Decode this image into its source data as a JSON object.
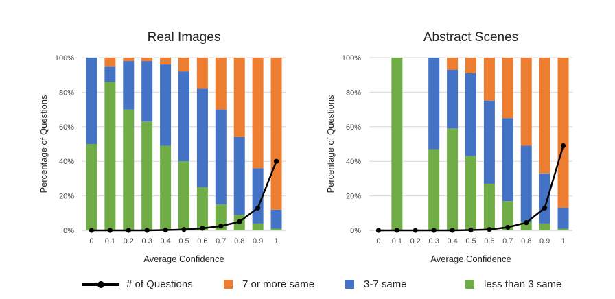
{
  "chart_data": [
    {
      "type": "bar",
      "stacked": true,
      "title": "Real Images",
      "xlabel": "Average Confidence",
      "ylabel": "Percentage of Questions",
      "categories": [
        "0",
        "0.1",
        "0.2",
        "0.3",
        "0.4",
        "0.5",
        "0.6",
        "0.7",
        "0.8",
        "0.9",
        "1"
      ],
      "ylim": [
        0,
        100
      ],
      "yticks": [
        "0%",
        "20%",
        "40%",
        "60%",
        "80%",
        "100%"
      ],
      "grid": true,
      "series": [
        {
          "name": "less than 3 same",
          "values": [
            50,
            86,
            70,
            63,
            49,
            40,
            25,
            15,
            9,
            4,
            1
          ]
        },
        {
          "name": "3-7 same",
          "values": [
            50,
            9,
            28,
            35,
            47,
            52,
            57,
            55,
            45,
            32,
            11
          ]
        },
        {
          "name": "7 or more same",
          "values": [
            0,
            5,
            2,
            2,
            4,
            8,
            18,
            30,
            46,
            64,
            88
          ]
        }
      ],
      "line": {
        "name": "# of Questions",
        "values": [
          0,
          0,
          0,
          0,
          0.2,
          0.5,
          1.2,
          2.5,
          5,
          13,
          40
        ]
      }
    },
    {
      "type": "bar",
      "stacked": true,
      "title": "Abstract Scenes",
      "xlabel": "Average Confidence",
      "ylabel": "Percentage of Questions",
      "categories": [
        "0",
        "0.1",
        "0.2",
        "0.3",
        "0.4",
        "0.5",
        "0.6",
        "0.7",
        "0.8",
        "0.9",
        "1"
      ],
      "ylim": [
        0,
        100
      ],
      "yticks": [
        "0%",
        "20%",
        "40%",
        "60%",
        "80%",
        "100%"
      ],
      "grid": true,
      "series": [
        {
          "name": "less than 3 same",
          "values": [
            0,
            100,
            0,
            47,
            59,
            43,
            27,
            17,
            5,
            4,
            1
          ]
        },
        {
          "name": "3-7 same",
          "values": [
            0,
            0,
            0,
            53,
            34,
            48,
            48,
            48,
            44,
            29,
            12
          ]
        },
        {
          "name": "7 or more same",
          "values": [
            0,
            0,
            0,
            0,
            7,
            9,
            25,
            35,
            51,
            67,
            87
          ]
        }
      ],
      "line": {
        "name": "# of Questions",
        "values": [
          0,
          0,
          0,
          0,
          0,
          0.2,
          0.5,
          1.8,
          4.5,
          13,
          49
        ]
      }
    }
  ],
  "colors": {
    "less than 3 same": "#70ad47",
    "3-7 same": "#4472c4",
    "7 or more same": "#ed7d31",
    "# of Questions": "#000000"
  },
  "legend": {
    "questions": "# of Questions",
    "seven_plus": "7 or more same",
    "three_seven": "3-7 same",
    "less_three": "less than 3 same"
  }
}
